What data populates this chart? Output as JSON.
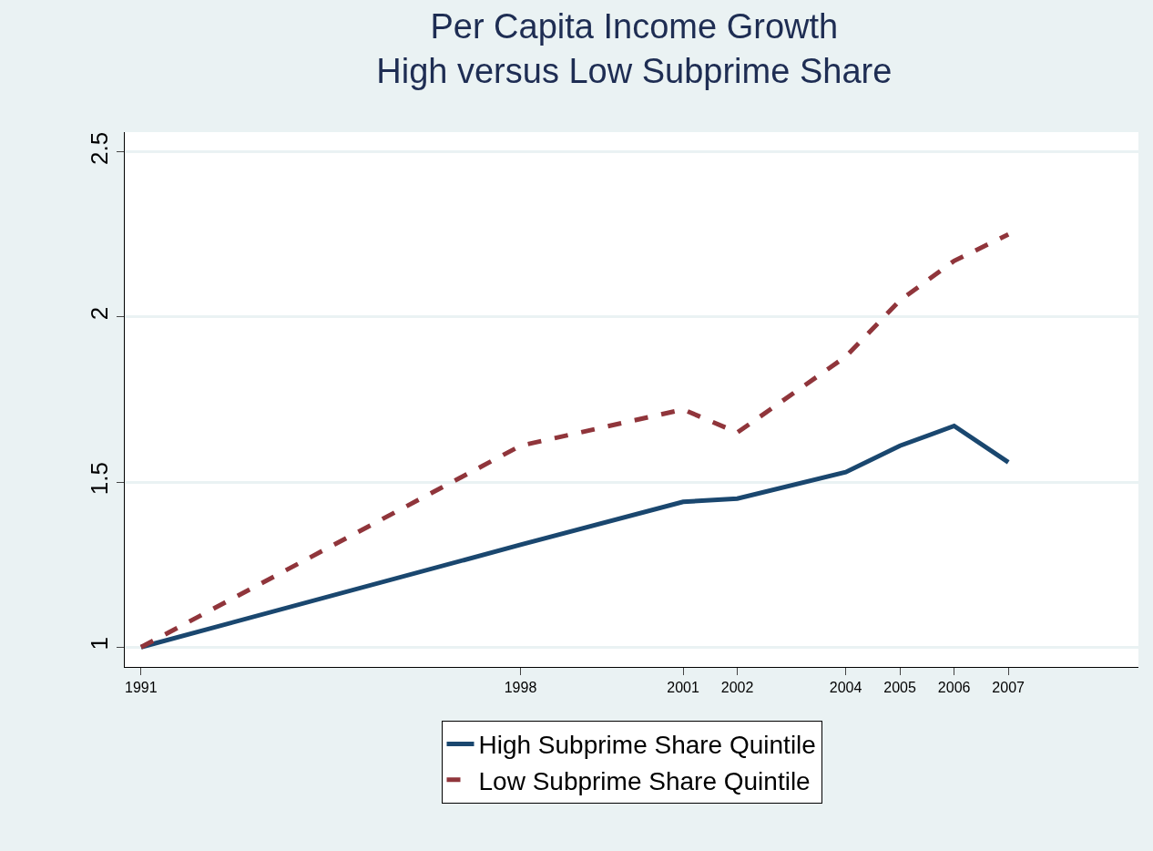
{
  "chart_data": {
    "type": "line",
    "title": "Per Capita Income Growth\nHigh versus Low Subprime Share",
    "x": [
      1991,
      1998,
      2001,
      2002,
      2004,
      2005,
      2006,
      2007
    ],
    "series": [
      {
        "name": "High Subprime Share Quintile",
        "color": "#1a476f",
        "line_style": "solid",
        "values": [
          1.0,
          1.31,
          1.44,
          1.45,
          1.53,
          1.61,
          1.67,
          1.56
        ]
      },
      {
        "name": "Low Subprime Share Quintile",
        "color": "#90353b",
        "line_style": "dashed",
        "values": [
          1.0,
          1.61,
          1.72,
          1.65,
          1.88,
          2.05,
          2.17,
          2.25
        ]
      }
    ],
    "xlim": [
      1990.7,
      2009.4
    ],
    "xticks": [
      1991,
      1998,
      2001,
      2002,
      2004,
      2005,
      2006,
      2007
    ],
    "ylim": [
      0.94,
      2.56
    ],
    "yticks": [
      {
        "value": 1,
        "label": "1"
      },
      {
        "value": 1.5,
        "label": "1.5"
      },
      {
        "value": 2,
        "label": "2"
      },
      {
        "value": 2.5,
        "label": "2.5"
      }
    ],
    "grid": "y",
    "legend": "bottom",
    "marker": "none"
  }
}
